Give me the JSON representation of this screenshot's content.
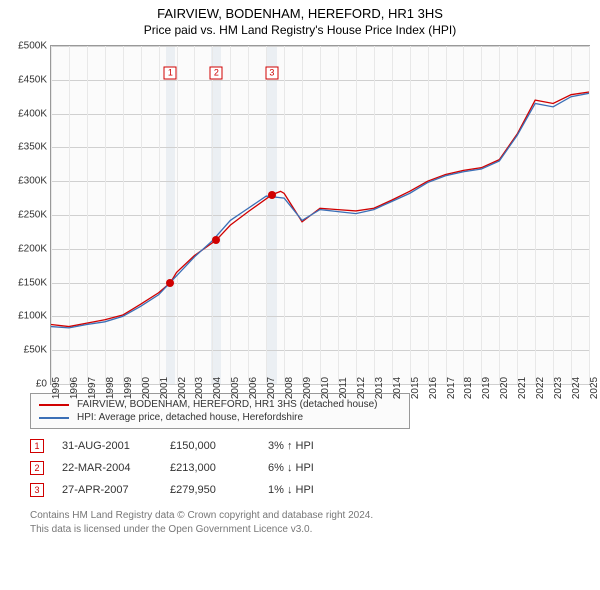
{
  "title": "FAIRVIEW, BODENHAM, HEREFORD, HR1 3HS",
  "subtitle": "Price paid vs. HM Land Registry's House Price Index (HPI)",
  "chart": {
    "type": "line",
    "background_color": "#fbfbfb",
    "grid_color": "#d0d0d0",
    "border_color": "#999999",
    "x_min": 1995,
    "x_max": 2025,
    "y_min": 0,
    "y_max": 500000,
    "ytick_step": 50000,
    "yticks": [
      "£0",
      "£50K",
      "£100K",
      "£150K",
      "£200K",
      "£250K",
      "£300K",
      "£350K",
      "£400K",
      "£450K",
      "£500K"
    ],
    "xticks": [
      "1995",
      "1996",
      "1997",
      "1998",
      "1999",
      "2000",
      "2001",
      "2002",
      "2003",
      "2004",
      "2005",
      "2006",
      "2007",
      "2008",
      "2009",
      "2010",
      "2011",
      "2012",
      "2013",
      "2014",
      "2015",
      "2016",
      "2017",
      "2018",
      "2019",
      "2020",
      "2021",
      "2022",
      "2023",
      "2024",
      "2025"
    ],
    "xtick_fontsize": 10,
    "ytick_fontsize": 10,
    "vband_color": "#ebeff3",
    "vbands": [
      {
        "x_start": 2001.4,
        "x_end": 2001.9
      },
      {
        "x_start": 2003.9,
        "x_end": 2004.5
      },
      {
        "x_start": 2007.0,
        "x_end": 2007.6
      }
    ],
    "series": [
      {
        "name": "FAIRVIEW, BODENHAM, HEREFORD, HR1 3HS (detached house)",
        "color": "#d00000",
        "line_width": 1.3,
        "data": [
          [
            1995,
            88000
          ],
          [
            1996,
            85000
          ],
          [
            1997,
            90000
          ],
          [
            1998,
            95000
          ],
          [
            1999,
            102000
          ],
          [
            2000,
            118000
          ],
          [
            2001,
            135000
          ],
          [
            2001.66,
            150000
          ],
          [
            2002,
            165000
          ],
          [
            2003,
            190000
          ],
          [
            2004.22,
            213000
          ],
          [
            2005,
            235000
          ],
          [
            2006,
            255000
          ],
          [
            2007.32,
            279950
          ],
          [
            2007.8,
            285000
          ],
          [
            2008,
            282000
          ],
          [
            2009,
            240000
          ],
          [
            2010,
            260000
          ],
          [
            2011,
            258000
          ],
          [
            2012,
            256000
          ],
          [
            2013,
            260000
          ],
          [
            2014,
            272000
          ],
          [
            2015,
            285000
          ],
          [
            2016,
            300000
          ],
          [
            2017,
            310000
          ],
          [
            2018,
            316000
          ],
          [
            2019,
            320000
          ],
          [
            2020,
            332000
          ],
          [
            2021,
            370000
          ],
          [
            2022,
            420000
          ],
          [
            2023,
            415000
          ],
          [
            2024,
            428000
          ],
          [
            2025,
            432000
          ]
        ]
      },
      {
        "name": "HPI: Average price, detached house, Herefordshire",
        "color": "#3b6fb6",
        "line_width": 1.3,
        "data": [
          [
            1995,
            85000
          ],
          [
            1996,
            83000
          ],
          [
            1997,
            88000
          ],
          [
            1998,
            92000
          ],
          [
            1999,
            100000
          ],
          [
            2000,
            115000
          ],
          [
            2001,
            132000
          ],
          [
            2002,
            160000
          ],
          [
            2003,
            188000
          ],
          [
            2004,
            212000
          ],
          [
            2005,
            242000
          ],
          [
            2006,
            260000
          ],
          [
            2007,
            278000
          ],
          [
            2008,
            275000
          ],
          [
            2009,
            242000
          ],
          [
            2010,
            258000
          ],
          [
            2011,
            255000
          ],
          [
            2012,
            252000
          ],
          [
            2013,
            258000
          ],
          [
            2014,
            270000
          ],
          [
            2015,
            282000
          ],
          [
            2016,
            298000
          ],
          [
            2017,
            308000
          ],
          [
            2018,
            314000
          ],
          [
            2019,
            318000
          ],
          [
            2020,
            330000
          ],
          [
            2021,
            368000
          ],
          [
            2022,
            415000
          ],
          [
            2023,
            410000
          ],
          [
            2024,
            425000
          ],
          [
            2025,
            430000
          ]
        ]
      }
    ],
    "markers": [
      {
        "label": "1",
        "marker_x": 2001.66,
        "marker_y_top": 460000,
        "dot_x": 2001.66,
        "dot_y": 150000,
        "border_color": "#d00000"
      },
      {
        "label": "2",
        "marker_x": 2004.22,
        "marker_y_top": 460000,
        "dot_x": 2004.22,
        "dot_y": 213000,
        "border_color": "#d00000"
      },
      {
        "label": "3",
        "marker_x": 2007.32,
        "marker_y_top": 460000,
        "dot_x": 2007.32,
        "dot_y": 279950,
        "border_color": "#d00000"
      }
    ]
  },
  "legend": {
    "items": [
      {
        "color": "#d00000",
        "label": "FAIRVIEW, BODENHAM, HEREFORD, HR1 3HS (detached house)"
      },
      {
        "color": "#3b6fb6",
        "label": "HPI: Average price, detached house, Herefordshire"
      }
    ]
  },
  "transactions": [
    {
      "n": "1",
      "date": "31-AUG-2001",
      "price": "£150,000",
      "pct": "3% ↑ HPI"
    },
    {
      "n": "2",
      "date": "22-MAR-2004",
      "price": "£213,000",
      "pct": "6% ↓ HPI"
    },
    {
      "n": "3",
      "date": "27-APR-2007",
      "price": "£279,950",
      "pct": "1% ↓ HPI"
    }
  ],
  "footer": {
    "line1": "Contains HM Land Registry data © Crown copyright and database right 2024.",
    "line2": "This data is licensed under the Open Government Licence v3.0."
  }
}
